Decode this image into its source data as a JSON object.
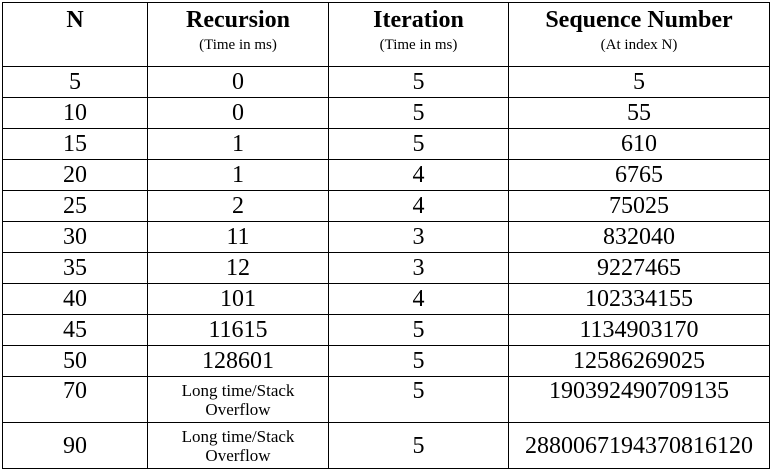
{
  "table": {
    "headers": [
      "N",
      "Recursion",
      "Iteration",
      "Sequence Number"
    ],
    "subheaders": [
      "",
      "(Time in ms)",
      "(Time in ms)",
      "(At index N)"
    ],
    "rows": [
      {
        "n": "5",
        "recursion": "0",
        "iteration": "5",
        "sequence": "5"
      },
      {
        "n": "10",
        "recursion": "0",
        "iteration": "5",
        "sequence": "55"
      },
      {
        "n": "15",
        "recursion": "1",
        "iteration": "5",
        "sequence": "610"
      },
      {
        "n": "20",
        "recursion": "1",
        "iteration": "4",
        "sequence": "6765"
      },
      {
        "n": "25",
        "recursion": "2",
        "iteration": "4",
        "sequence": "75025"
      },
      {
        "n": "30",
        "recursion": "11",
        "iteration": "3",
        "sequence": "832040"
      },
      {
        "n": "35",
        "recursion": "12",
        "iteration": "3",
        "sequence": "9227465"
      },
      {
        "n": "40",
        "recursion": "101",
        "iteration": "4",
        "sequence": "102334155"
      },
      {
        "n": "45",
        "recursion": "11615",
        "iteration": "5",
        "sequence": "1134903170"
      },
      {
        "n": "50",
        "recursion": "128601",
        "iteration": "5",
        "sequence": "12586269025"
      },
      {
        "n": "70",
        "recursion_line1": "Long time/Stack",
        "recursion_line2": "Overflow",
        "iteration": "5",
        "sequence": "190392490709135"
      },
      {
        "n": "90",
        "recursion_line1": "Long time/Stack",
        "recursion_line2": "Overflow",
        "iteration": "5",
        "sequence": "2880067194370816120"
      }
    ]
  }
}
